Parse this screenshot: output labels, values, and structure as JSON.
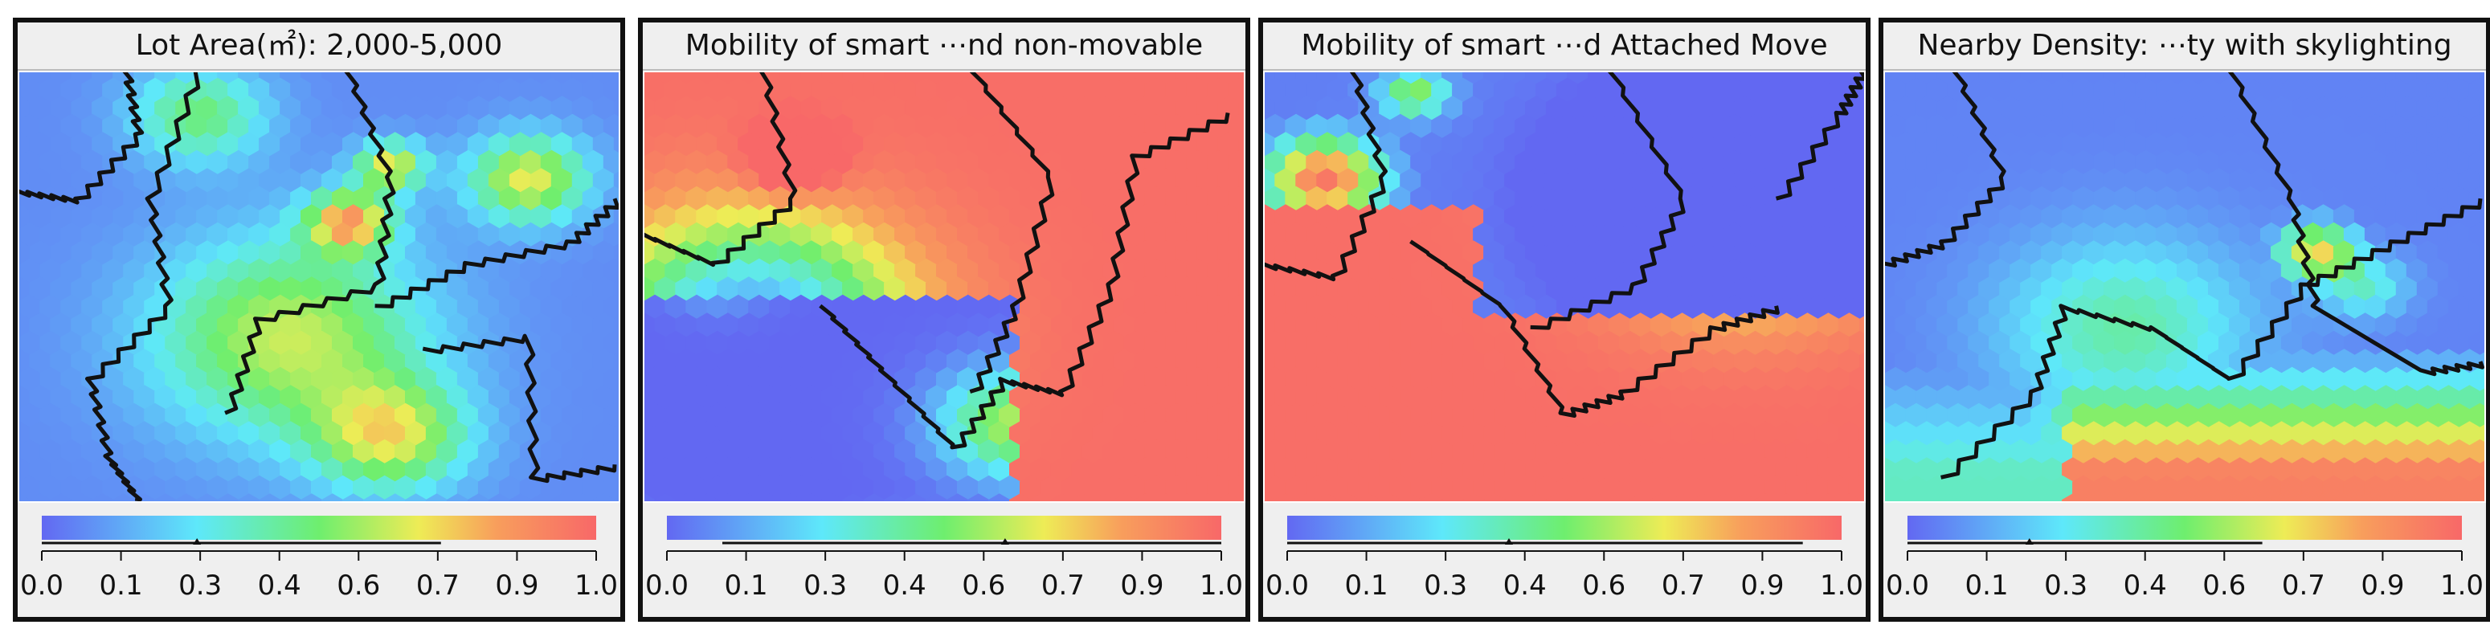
{
  "chart_data": [
    {
      "type": "heatmap",
      "title": "Lot Area(㎡): 2,000-5,000",
      "colorbar": {
        "ticks": [
          "0.0",
          "0.1",
          "0.3",
          "0.4",
          "0.6",
          "0.7",
          "0.9",
          "1.0"
        ],
        "range": [
          0,
          1
        ],
        "marker": 0.28,
        "span_end": 0.72
      }
    },
    {
      "type": "heatmap",
      "title": "Mobility of smart ⋯nd non-movable",
      "colorbar": {
        "ticks": [
          "0.0",
          "0.1",
          "0.3",
          "0.4",
          "0.6",
          "0.7",
          "0.9",
          "1.0"
        ],
        "range": [
          0,
          1
        ],
        "marker": 0.61,
        "span_start": 0.1
      }
    },
    {
      "type": "heatmap",
      "title": "Mobility of smart ⋯d Attached Move",
      "colorbar": {
        "ticks": [
          "0.0",
          "0.1",
          "0.3",
          "0.4",
          "0.6",
          "0.7",
          "0.9",
          "1.0"
        ],
        "range": [
          0,
          1
        ],
        "marker": 0.4,
        "span_end": 0.93
      }
    },
    {
      "type": "heatmap",
      "title": "Nearby Density: ⋯ty with skylighting",
      "colorbar": {
        "ticks": [
          "0.0",
          "0.1",
          "0.3",
          "0.4",
          "0.6",
          "0.7",
          "0.9",
          "1.0"
        ],
        "range": [
          0,
          1
        ],
        "marker": 0.22,
        "span_end": 0.64
      }
    }
  ],
  "colors": {
    "low": "#6268f2",
    "high": "#f86868",
    "boundary": "#111111",
    "background": "#efefef"
  }
}
